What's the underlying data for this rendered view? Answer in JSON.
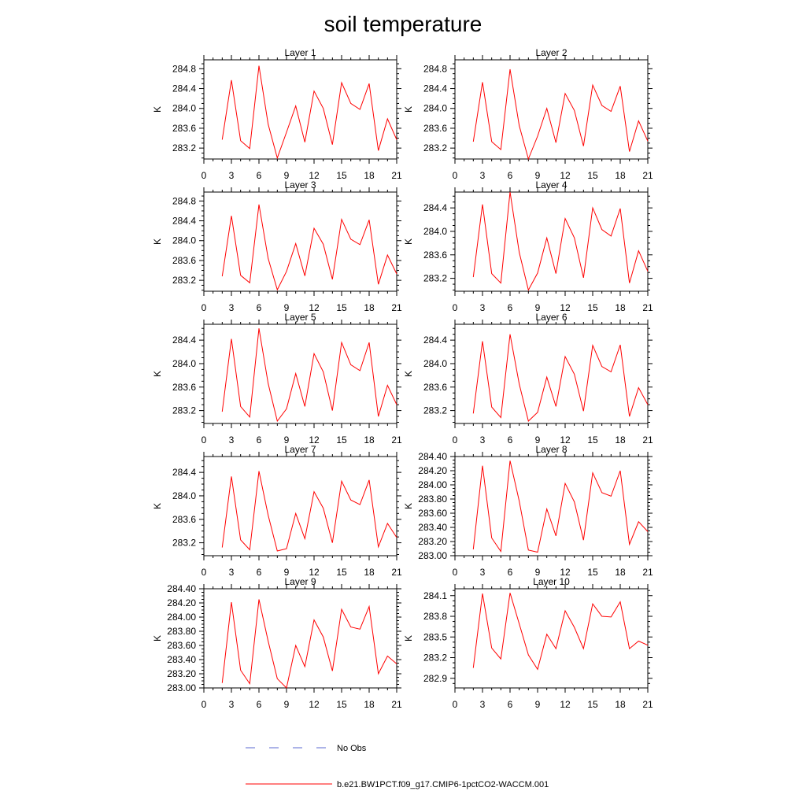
{
  "title": "soil temperature",
  "chart_data": {
    "type": "line",
    "title": "soil temperature",
    "panels": [
      {
        "title": "Layer 1",
        "ylabel": "K",
        "xlim": [
          0,
          21
        ],
        "ylim": [
          282.98,
          284.98
        ],
        "xticks": [
          "0",
          "3",
          "6",
          "9",
          "12",
          "15",
          "18",
          "21"
        ],
        "yticks": [
          "283.2",
          "283.6",
          "284.0",
          "284.4",
          "284.8"
        ],
        "x": [
          2,
          3,
          4,
          5,
          6,
          7,
          8,
          9,
          10,
          11,
          12,
          13,
          14,
          15,
          16,
          17,
          18,
          19,
          20,
          21
        ],
        "y": [
          283.37,
          284.57,
          283.35,
          283.19,
          284.86,
          283.68,
          283.0,
          283.52,
          284.05,
          283.32,
          284.35,
          284.0,
          283.27,
          284.52,
          284.1,
          283.98,
          284.5,
          283.15,
          283.79,
          283.37
        ]
      },
      {
        "title": "Layer 2",
        "ylabel": "K",
        "xlim": [
          0,
          21
        ],
        "ylim": [
          282.98,
          284.98
        ],
        "xticks": [
          "0",
          "3",
          "6",
          "9",
          "12",
          "15",
          "18",
          "21"
        ],
        "yticks": [
          "283.2",
          "283.6",
          "284.0",
          "284.4",
          "284.8"
        ],
        "x": [
          2,
          3,
          4,
          5,
          6,
          7,
          8,
          9,
          10,
          11,
          12,
          13,
          14,
          15,
          16,
          17,
          18,
          19,
          20,
          21
        ],
        "y": [
          283.33,
          284.53,
          283.33,
          283.17,
          284.79,
          283.65,
          282.98,
          283.44,
          284.0,
          283.31,
          284.3,
          283.96,
          283.24,
          284.47,
          284.06,
          283.94,
          284.45,
          283.13,
          283.75,
          283.34
        ]
      },
      {
        "title": "Layer 3",
        "ylabel": "K",
        "xlim": [
          0,
          21
        ],
        "ylim": [
          282.98,
          284.98
        ],
        "xticks": [
          "0",
          "3",
          "6",
          "9",
          "12",
          "15",
          "18",
          "21"
        ],
        "yticks": [
          "283.2",
          "283.6",
          "284.0",
          "284.4",
          "284.8"
        ],
        "x": [
          2,
          3,
          4,
          5,
          6,
          7,
          8,
          9,
          10,
          11,
          12,
          13,
          14,
          15,
          16,
          17,
          18,
          19,
          20,
          21
        ],
        "y": [
          283.28,
          284.5,
          283.3,
          283.15,
          284.73,
          283.64,
          283.01,
          283.38,
          283.94,
          283.29,
          284.25,
          283.93,
          283.22,
          284.43,
          284.03,
          283.92,
          284.42,
          283.12,
          283.71,
          283.33
        ]
      },
      {
        "title": "Layer 4",
        "ylabel": "K",
        "xlim": [
          0,
          21
        ],
        "ylim": [
          282.98,
          284.67
        ],
        "xticks": [
          "0",
          "3",
          "6",
          "9",
          "12",
          "15",
          "18",
          "21"
        ],
        "yticks": [
          "283.2",
          "283.6",
          "284.0",
          "284.4"
        ],
        "x": [
          2,
          3,
          4,
          5,
          6,
          7,
          8,
          9,
          10,
          11,
          12,
          13,
          14,
          15,
          16,
          17,
          18,
          19,
          20,
          21
        ],
        "y": [
          283.22,
          284.46,
          283.28,
          283.12,
          284.67,
          283.64,
          283.0,
          283.29,
          283.89,
          283.28,
          284.22,
          283.89,
          283.21,
          284.4,
          284.03,
          283.92,
          284.39,
          283.12,
          283.67,
          283.32
        ]
      },
      {
        "title": "Layer 5",
        "ylabel": "K",
        "xlim": [
          0,
          21
        ],
        "ylim": [
          282.98,
          284.67
        ],
        "xticks": [
          "0",
          "3",
          "6",
          "9",
          "12",
          "15",
          "18",
          "21"
        ],
        "yticks": [
          "283.2",
          "283.6",
          "284.0",
          "284.4"
        ],
        "x": [
          2,
          3,
          4,
          5,
          6,
          7,
          8,
          9,
          10,
          11,
          12,
          13,
          14,
          15,
          16,
          17,
          18,
          19,
          20,
          21
        ],
        "y": [
          283.18,
          284.42,
          283.27,
          283.09,
          284.6,
          283.66,
          283.02,
          283.23,
          283.83,
          283.27,
          284.17,
          283.86,
          283.2,
          284.36,
          283.98,
          283.88,
          284.36,
          283.1,
          283.63,
          283.3
        ]
      },
      {
        "title": "Layer 6",
        "ylabel": "K",
        "xlim": [
          0,
          21
        ],
        "ylim": [
          282.98,
          284.67
        ],
        "xticks": [
          "0",
          "3",
          "6",
          "9",
          "12",
          "15",
          "18",
          "21"
        ],
        "yticks": [
          "283.2",
          "283.6",
          "284.0",
          "284.4"
        ],
        "x": [
          2,
          3,
          4,
          5,
          6,
          7,
          8,
          9,
          10,
          11,
          12,
          13,
          14,
          15,
          16,
          17,
          18,
          19,
          20,
          21
        ],
        "y": [
          283.15,
          284.38,
          283.26,
          283.08,
          284.5,
          283.65,
          283.02,
          283.17,
          283.77,
          283.27,
          284.12,
          283.82,
          283.19,
          284.31,
          283.95,
          283.86,
          284.32,
          283.1,
          283.59,
          283.3
        ]
      },
      {
        "title": "Layer 7",
        "ylabel": "K",
        "xlim": [
          0,
          21
        ],
        "ylim": [
          282.98,
          284.67
        ],
        "xticks": [
          "0",
          "3",
          "6",
          "9",
          "12",
          "15",
          "18",
          "21"
        ],
        "yticks": [
          "283.2",
          "283.6",
          "284.0",
          "284.4"
        ],
        "x": [
          2,
          3,
          4,
          5,
          6,
          7,
          8,
          9,
          10,
          11,
          12,
          13,
          14,
          15,
          16,
          17,
          18,
          19,
          20,
          21
        ],
        "y": [
          283.12,
          284.33,
          283.25,
          283.08,
          284.42,
          283.67,
          283.06,
          283.1,
          283.7,
          283.27,
          284.07,
          283.79,
          283.2,
          284.25,
          283.93,
          283.85,
          284.27,
          283.13,
          283.53,
          283.29
        ]
      },
      {
        "title": "Layer 8",
        "ylabel": "K",
        "xlim": [
          0,
          21
        ],
        "ylim": [
          283.0,
          284.4
        ],
        "xticks": [
          "0",
          "3",
          "6",
          "9",
          "12",
          "15",
          "18",
          "21"
        ],
        "yticks": [
          "283.00",
          "283.20",
          "283.40",
          "283.60",
          "283.80",
          "284.00",
          "284.20",
          "284.40"
        ],
        "x": [
          2,
          3,
          4,
          5,
          6,
          7,
          8,
          9,
          10,
          11,
          12,
          13,
          14,
          15,
          16,
          17,
          18,
          19,
          20,
          21
        ],
        "y": [
          283.09,
          284.27,
          283.25,
          283.06,
          284.34,
          283.77,
          283.08,
          283.05,
          283.66,
          283.28,
          284.02,
          283.76,
          283.22,
          284.17,
          283.89,
          283.84,
          284.2,
          283.16,
          283.48,
          283.34
        ]
      },
      {
        "title": "Layer 9",
        "ylabel": "K",
        "xlim": [
          0,
          21
        ],
        "ylim": [
          283.0,
          284.4
        ],
        "xticks": [
          "0",
          "3",
          "6",
          "9",
          "12",
          "15",
          "18",
          "21"
        ],
        "yticks": [
          "283.00",
          "283.20",
          "283.40",
          "283.60",
          "283.80",
          "284.00",
          "284.20",
          "284.40"
        ],
        "x": [
          2,
          3,
          4,
          5,
          6,
          7,
          8,
          9,
          10,
          11,
          12,
          13,
          14,
          15,
          16,
          17,
          18,
          19,
          20,
          21
        ],
        "y": [
          283.07,
          284.21,
          283.25,
          283.06,
          284.25,
          283.66,
          283.13,
          283.0,
          283.6,
          283.3,
          283.96,
          283.72,
          283.24,
          284.11,
          283.86,
          283.83,
          284.15,
          283.2,
          283.45,
          283.34
        ]
      },
      {
        "title": "Layer 10",
        "ylabel": "K",
        "xlim": [
          0,
          21
        ],
        "ylim": [
          282.76,
          284.2
        ],
        "xticks": [
          "0",
          "3",
          "6",
          "9",
          "12",
          "15",
          "18",
          "21"
        ],
        "yticks": [
          "282.9",
          "283.2",
          "283.5",
          "283.8",
          "284.1"
        ],
        "x": [
          2,
          3,
          4,
          5,
          6,
          7,
          8,
          9,
          10,
          11,
          12,
          13,
          14,
          15,
          16,
          17,
          18,
          19,
          20,
          21
        ],
        "y": [
          283.05,
          284.13,
          283.34,
          283.18,
          284.14,
          283.69,
          283.24,
          283.03,
          283.54,
          283.33,
          283.88,
          283.64,
          283.33,
          283.98,
          283.8,
          283.79,
          284.01,
          283.33,
          283.44,
          283.38
        ]
      }
    ],
    "series": [
      {
        "name": "No Obs",
        "color": "#5b6ad0",
        "style": "dashed"
      },
      {
        "name": "b.e21.BW1PCT.f09_g17.CMIP6-1pctCO2-WACCM.001",
        "color": "#ff0000",
        "style": "solid"
      }
    ],
    "legend_position": "bottom"
  }
}
